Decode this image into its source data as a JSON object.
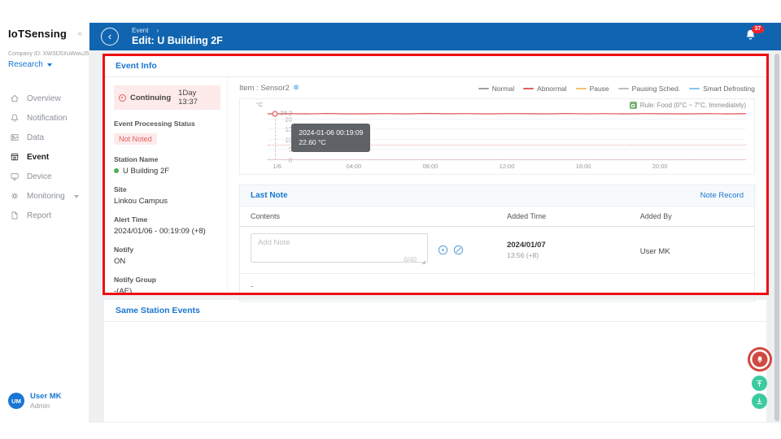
{
  "colors": {
    "header_blue": "#1165b0",
    "link_blue": "#1976d2",
    "alert_red": "#e25f5f",
    "annotation_red": "#ef0d11",
    "badge_red": "#f5222d",
    "station_green": "#4caf50",
    "float_green": "#3ccb9e"
  },
  "icons": {
    "back": "‹",
    "collapse": "«",
    "breadcrumb_sep": "›",
    "snowflake": "❄"
  },
  "sidebar": {
    "brand": "IoTSensing",
    "company_id": "Company ID: XWSD5XuWwuJ5",
    "org_selector": "Research",
    "items": [
      {
        "label": "Overview",
        "icon": "home-icon"
      },
      {
        "label": "Notification",
        "icon": "bell-icon"
      },
      {
        "label": "Data",
        "icon": "data-icon"
      },
      {
        "label": "Event",
        "icon": "event-icon"
      },
      {
        "label": "Device",
        "icon": "device-icon"
      },
      {
        "label": "Monitoring",
        "icon": "monitoring-icon"
      },
      {
        "label": "Report",
        "icon": "report-icon"
      }
    ],
    "active_item": "Event",
    "user": {
      "initials": "UM",
      "name": "User MK",
      "role": "Admin"
    }
  },
  "header": {
    "breadcrumb": "Event",
    "title": "Edit: U Building 2F",
    "notification_count": "37"
  },
  "event_info": {
    "title": "Event Info",
    "status": {
      "state": "Continuing",
      "duration": "1Day 13:37"
    },
    "item_label": "Item : Sensor2",
    "fields": [
      {
        "label": "Event Processing Status",
        "value": "Not Noted"
      },
      {
        "label": "Station Name",
        "value": "U Building 2F"
      },
      {
        "label": "Site",
        "value": "Linkou Campus"
      },
      {
        "label": "Alert Time",
        "value": "2024/01/06 - 00:19:09 (+8)"
      },
      {
        "label": "Notify",
        "value": "ON"
      },
      {
        "label": "Notify Group",
        "value": "-(AE)"
      }
    ]
  },
  "chart_data": {
    "type": "line",
    "title": "",
    "xlabel": "",
    "ylabel": "°C",
    "unit": "°C",
    "x_labels": [
      "1/6",
      "04:00",
      "08:00",
      "12:00",
      "16:00",
      "20:00"
    ],
    "xlim_hours": [
      0,
      24
    ],
    "y_ticks": [
      0,
      5,
      10,
      15,
      20,
      23.2
    ],
    "y_tick_labels": [
      "0",
      "5",
      "10",
      "15",
      "20",
      "23.2"
    ],
    "ylim": [
      0,
      24.6
    ],
    "grid": true,
    "series": [
      {
        "name": "Abnormal",
        "color": "#e25f5f",
        "values": [
          22.6,
          22.7,
          22.6,
          22.75,
          22.6,
          22.65,
          22.7,
          22.6,
          22.8,
          22.65,
          22.7,
          22.6,
          22.72,
          22.68,
          22.6,
          22.78,
          22.62,
          22.7,
          22.6,
          22.7,
          22.64,
          22.6,
          22.72,
          22.6,
          22.68
        ]
      }
    ],
    "thresholds": [
      {
        "value": 7,
        "color": "#eaa4a4",
        "style": "dotted"
      },
      {
        "value": 0,
        "color": "#eaa4a4",
        "style": "dotted"
      }
    ],
    "legend": [
      {
        "label": "Normal",
        "color": "#9e9e9e"
      },
      {
        "label": "Abnormal",
        "color": "#e25f5f"
      },
      {
        "label": "Pause",
        "color": "#f3c06f"
      },
      {
        "label": "Pausing Sched.",
        "color": "#b9bec4"
      },
      {
        "label": "Smart Defrosting",
        "color": "#85c6ee"
      }
    ],
    "legend_position": "top-right",
    "rule_label": "Rule: Food (0°C ~ 7°C, Immediately)",
    "tooltip": {
      "line1": "2024-01-06 00:19:09",
      "line2": "22.60 °C"
    },
    "marker": {
      "time": "00:19",
      "value": 22.6
    }
  },
  "last_note": {
    "title": "Last Note",
    "record_link": "Note Record",
    "columns": [
      "Contents",
      "Added Time",
      "Added By"
    ],
    "note_placeholder": "Add Note",
    "char_counter": "0/40",
    "row": {
      "added_date": "2024/01/07",
      "added_time": "13:56 (+8)",
      "added_by": "User MK"
    },
    "empty_row": "-"
  },
  "same_station": {
    "title": "Same Station Events"
  }
}
